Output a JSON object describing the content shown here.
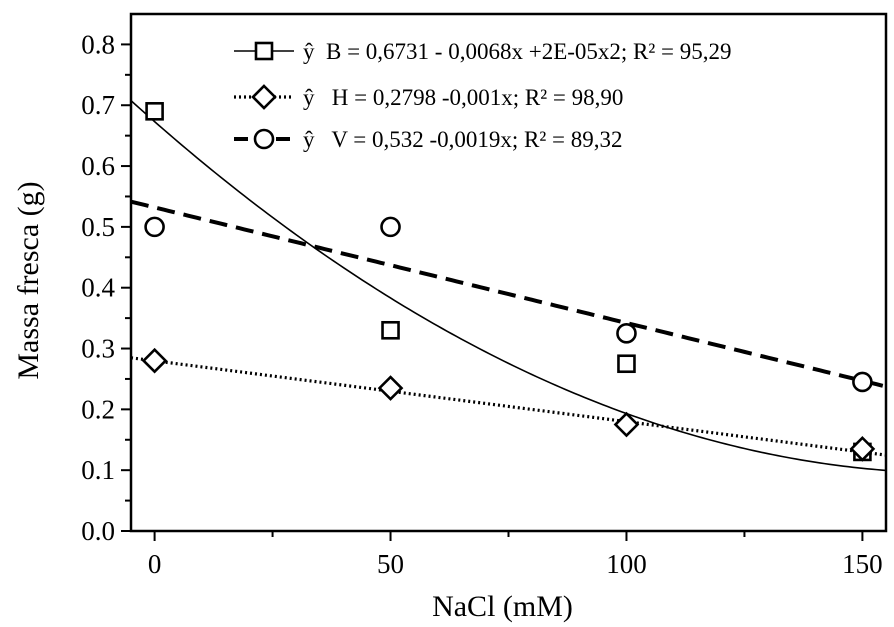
{
  "chart_data": {
    "type": "scatter",
    "xlabel": "NaCl (mM)",
    "ylabel": "Massa fresca (g)",
    "xlim": [
      -5,
      155
    ],
    "ylim": [
      0.0,
      0.85
    ],
    "xticks": [
      "0",
      "50",
      "100",
      "150"
    ],
    "yticks": [
      "0.0",
      "0.1",
      "0.2",
      "0.3",
      "0.4",
      "0.5",
      "0.6",
      "0.7",
      "0.8"
    ],
    "legend_position": "top-right",
    "series": [
      {
        "name": "B",
        "marker": "square",
        "line": "solid",
        "x": [
          0,
          50,
          100,
          150
        ],
        "y": [
          0.69,
          0.33,
          0.275,
          0.13
        ],
        "fit": {
          "model": "quadratic",
          "coefficients": [
            0.6731,
            -0.0068,
            2e-05
          ]
        },
        "legend_label": "ŷ  B = 0,6731 - 0,0068x +2E-05x2; R² = 95,29"
      },
      {
        "name": "H",
        "marker": "diamond",
        "line": "dotted",
        "x": [
          0,
          50,
          100,
          150
        ],
        "y": [
          0.28,
          0.235,
          0.175,
          0.135
        ],
        "fit": {
          "model": "linear",
          "coefficients": [
            0.2798,
            -0.001
          ]
        },
        "legend_label": "ŷ   H = 0,2798 -0,001x; R² = 98,90"
      },
      {
        "name": "V",
        "marker": "circle",
        "line": "dashed",
        "x": [
          0,
          50,
          100,
          150
        ],
        "y": [
          0.5,
          0.5,
          0.325,
          0.245
        ],
        "fit": {
          "model": "linear",
          "coefficients": [
            0.532,
            -0.0019
          ]
        },
        "legend_label": "ŷ   V = 0,532 -0,0019x; R² = 89,32"
      }
    ]
  }
}
